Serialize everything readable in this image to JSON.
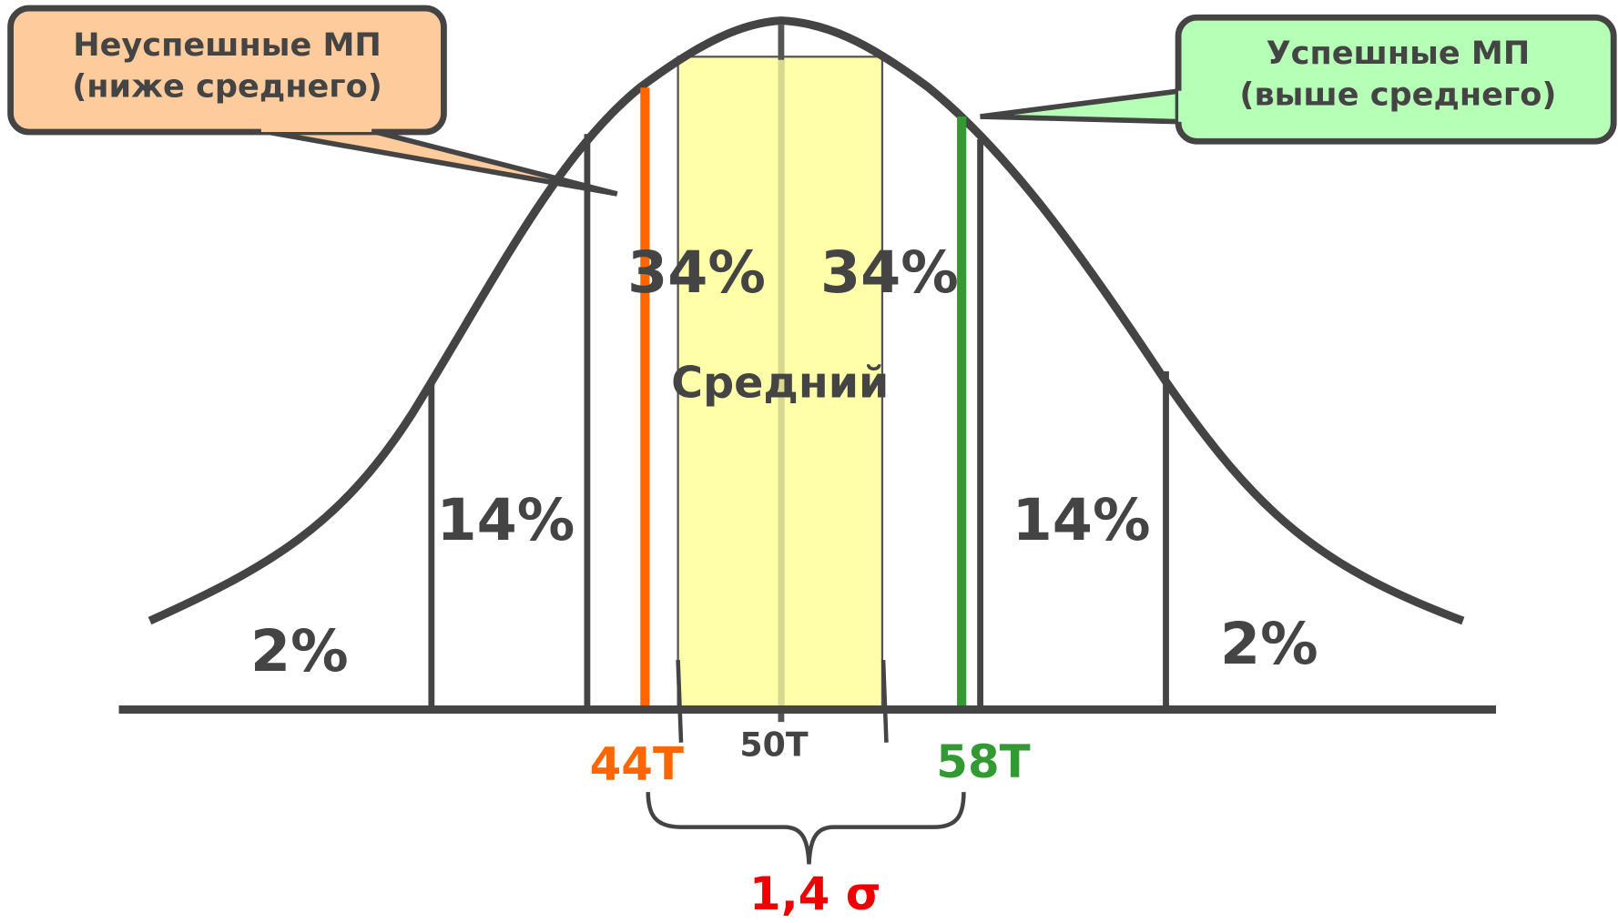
{
  "callouts": {
    "left": {
      "line1": "Неуспешные МП",
      "line2": "(ниже среднего)"
    },
    "right": {
      "line1": "Успешные МП",
      "line2": "(выше среднего)"
    }
  },
  "regions": {
    "far_left": "2%",
    "left": "14%",
    "center_left": "34%",
    "center_right": "34%",
    "right": "14%",
    "far_right": "2%"
  },
  "mean_label": "Средний",
  "axis_labels": {
    "low": "44T",
    "mean": "50T",
    "high": "58T"
  },
  "span_label": "1,4 σ"
}
